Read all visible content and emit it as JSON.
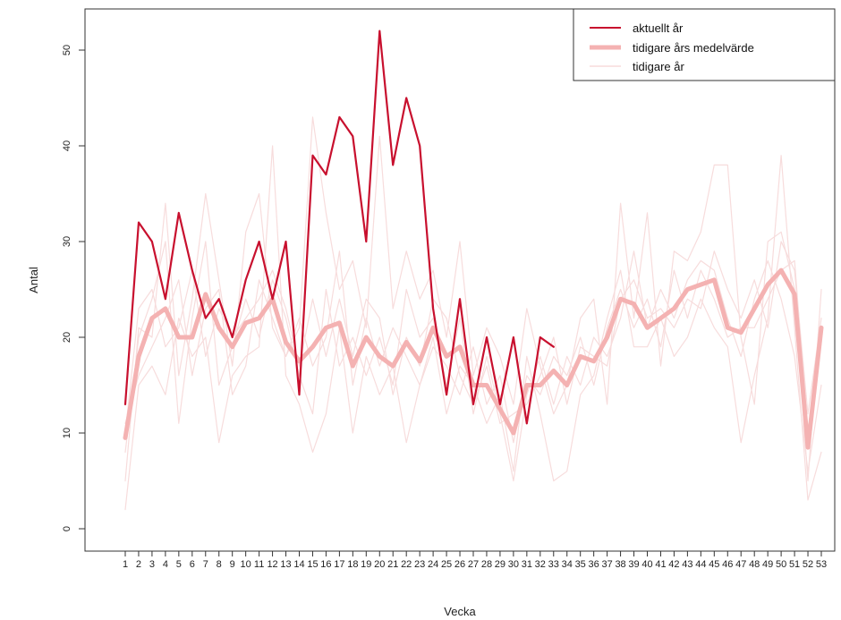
{
  "chart_data": {
    "type": "line",
    "xlabel": "Vecka",
    "ylabel": "Antal",
    "ylim": [
      0,
      50
    ],
    "yticks": [
      0,
      10,
      20,
      30,
      40,
      50
    ],
    "xticks": [
      "1",
      "2",
      "3",
      "4",
      "5",
      "6",
      "7",
      "8",
      "9",
      "10",
      "11",
      "12",
      "13",
      "14",
      "15",
      "16",
      "17",
      "18",
      "19",
      "20",
      "21",
      "22",
      "23",
      "24",
      "25",
      "26",
      "27",
      "28",
      "29",
      "30",
      "31",
      "32",
      "33",
      "34",
      "35",
      "36",
      "37",
      "38",
      "39",
      "40",
      "41",
      "42",
      "43",
      "44",
      "45",
      "46",
      "47",
      "48",
      "49",
      "50",
      "51",
      "52",
      "53"
    ],
    "legend": {
      "position": "top-right",
      "items": [
        {
          "label": "aktuellt år",
          "series": "current"
        },
        {
          "label": "tidigare års medelvärde",
          "series": "mean"
        },
        {
          "label": "tidigare år",
          "series": "previous"
        }
      ]
    },
    "colors": {
      "current": "#c8102e",
      "mean": "#f4b2b2",
      "previous": "#f7dcdc"
    },
    "series": [
      {
        "key": "current",
        "x": [
          1,
          2,
          3,
          4,
          5,
          6,
          7,
          8,
          9,
          10,
          11,
          12,
          13,
          14,
          15,
          16,
          17,
          18,
          19,
          20,
          21,
          22,
          23,
          24,
          25,
          26,
          27,
          28,
          29,
          30,
          31,
          32,
          33
        ],
        "values": [
          13,
          32,
          30,
          24,
          33,
          27,
          22,
          24,
          20,
          26,
          30,
          24,
          30,
          14,
          39,
          37,
          43,
          41,
          30,
          52,
          38,
          45,
          40,
          23,
          14,
          24,
          13,
          20,
          13,
          20,
          11,
          20,
          19
        ]
      },
      {
        "key": "mean",
        "x": [
          1,
          2,
          3,
          4,
          5,
          6,
          7,
          8,
          9,
          10,
          11,
          12,
          13,
          14,
          15,
          16,
          17,
          18,
          19,
          20,
          21,
          22,
          23,
          24,
          25,
          26,
          27,
          28,
          29,
          30,
          31,
          32,
          33,
          34,
          35,
          36,
          37,
          38,
          39,
          40,
          41,
          42,
          43,
          44,
          45,
          46,
          47,
          48,
          49,
          50,
          51,
          52,
          53
        ],
        "values": [
          9.5,
          18,
          22,
          23,
          20,
          20,
          24.5,
          21,
          19,
          21.5,
          22,
          24,
          19.5,
          17.5,
          19,
          21,
          21.5,
          17,
          20,
          18,
          17,
          19.5,
          17.5,
          21,
          18,
          19,
          15,
          15,
          12.5,
          10,
          15,
          15,
          16.5,
          15,
          18,
          17.5,
          20,
          24,
          23.5,
          21,
          22,
          23,
          25,
          25.5,
          26,
          21,
          20.5,
          23,
          25.5,
          27,
          24.5,
          8.5,
          21
        ]
      },
      {
        "key": "previous",
        "x": [
          1,
          2,
          3,
          4,
          5,
          6,
          7,
          8,
          9,
          10,
          11,
          12,
          13,
          14,
          15,
          16,
          17,
          18,
          19,
          20,
          21,
          22,
          23,
          24,
          25,
          26,
          27,
          28,
          29,
          30,
          31,
          32,
          33,
          34,
          35,
          36,
          37,
          38,
          39,
          40,
          41,
          42,
          43,
          44,
          45,
          46,
          47,
          48,
          49,
          50,
          51,
          52,
          53
        ],
        "values": [
          5,
          21,
          20,
          34,
          16,
          24,
          35,
          26,
          17,
          31,
          35,
          21,
          18,
          21,
          43,
          33,
          25,
          28,
          21,
          41,
          23,
          29,
          24,
          27,
          20,
          30,
          16,
          21,
          18,
          13,
          23,
          17,
          12,
          15,
          22,
          24,
          13,
          34,
          22,
          33,
          17,
          29,
          28,
          31,
          38,
          38,
          20,
          13,
          30,
          31,
          25,
          5,
          25
        ]
      },
      {
        "key": "previous",
        "x": [
          1,
          2,
          3,
          4,
          5,
          6,
          7,
          8,
          9,
          10,
          11,
          12,
          13,
          14,
          15,
          16,
          17,
          18,
          19,
          20,
          21,
          22,
          23,
          24,
          25,
          26,
          27,
          28,
          29,
          30,
          31,
          32,
          33,
          34,
          35,
          36,
          37,
          38,
          39,
          40,
          41,
          42,
          43,
          44,
          45,
          46,
          47,
          48,
          49,
          50,
          51,
          52,
          53
        ],
        "values": [
          2,
          15,
          17,
          14,
          22,
          18,
          20,
          9,
          16,
          18,
          19,
          40,
          16,
          13,
          8,
          12,
          21,
          10,
          18,
          14,
          17,
          9,
          15,
          20,
          12,
          17,
          15,
          11,
          14,
          6,
          18,
          12,
          5,
          6,
          14,
          16,
          22,
          27,
          19,
          19,
          22,
          18,
          20,
          24,
          21,
          19,
          9,
          16,
          22,
          39,
          21,
          3,
          8
        ]
      },
      {
        "key": "previous",
        "x": [
          1,
          2,
          3,
          4,
          5,
          6,
          7,
          8,
          9,
          10,
          11,
          12,
          13,
          14,
          15,
          16,
          17,
          18,
          19,
          20,
          21,
          22,
          23,
          24,
          25,
          26,
          27,
          28,
          29,
          30,
          31,
          32,
          33,
          34,
          35,
          36,
          37,
          38,
          39,
          40,
          41,
          42,
          43,
          44,
          45,
          46,
          47,
          48,
          49,
          50,
          51,
          52,
          53
        ],
        "values": [
          8,
          20,
          24,
          30,
          11,
          22,
          30,
          15,
          19,
          24,
          20,
          26,
          22,
          16,
          12,
          25,
          17,
          20,
          16,
          20,
          15,
          25,
          20,
          22,
          15,
          22,
          12,
          18,
          12,
          5,
          14,
          18,
          13,
          18,
          15,
          20,
          18,
          22,
          29,
          21,
          25,
          22,
          26,
          28,
          27,
          22,
          18,
          24,
          28,
          24,
          18,
          6,
          15
        ]
      },
      {
        "key": "previous",
        "x": [
          1,
          2,
          3,
          4,
          5,
          6,
          7,
          8,
          9,
          10,
          11,
          12,
          13,
          14,
          15,
          16,
          17,
          18,
          19,
          20,
          21,
          22,
          23,
          24,
          25,
          26,
          27,
          28,
          29,
          30,
          31,
          32,
          33,
          34,
          35,
          36,
          37,
          38,
          39,
          40,
          41,
          42,
          43,
          44,
          45,
          46,
          47,
          48,
          49,
          50,
          51,
          52,
          53
        ],
        "values": [
          11,
          16,
          19,
          22,
          26,
          16,
          23,
          25,
          14,
          17,
          26,
          22,
          18,
          22,
          17,
          20,
          29,
          15,
          22,
          17,
          21,
          18,
          15,
          19,
          17,
          14,
          19,
          13,
          16,
          9,
          16,
          14,
          18,
          16,
          20,
          15,
          21,
          25,
          21,
          24,
          19,
          27,
          22,
          27,
          24,
          20,
          21,
          21,
          24,
          27,
          28,
          10,
          20
        ]
      },
      {
        "key": "previous",
        "x": [
          1,
          2,
          3,
          4,
          5,
          6,
          7,
          8,
          9,
          10,
          11,
          12,
          13,
          14,
          15,
          16,
          17,
          18,
          19,
          20,
          21,
          22,
          23,
          24,
          25,
          26,
          27,
          28,
          29,
          30,
          31,
          32,
          33,
          34,
          35,
          36,
          37,
          38,
          39,
          40,
          41,
          42,
          43,
          44,
          45,
          46,
          47,
          48,
          49,
          50,
          51,
          52,
          53
        ],
        "values": [
          10,
          23,
          25,
          19,
          21,
          27,
          18,
          23,
          20,
          22,
          24,
          27,
          23,
          17,
          24,
          18,
          24,
          18,
          24,
          22,
          14,
          20,
          17,
          24,
          22,
          16,
          13,
          17,
          11,
          12,
          13,
          16,
          20,
          13,
          19,
          18,
          17,
          24,
          26,
          22,
          23,
          21,
          24,
          23,
          29,
          25,
          22,
          26,
          21,
          30,
          27,
          12,
          22
        ]
      }
    ]
  }
}
